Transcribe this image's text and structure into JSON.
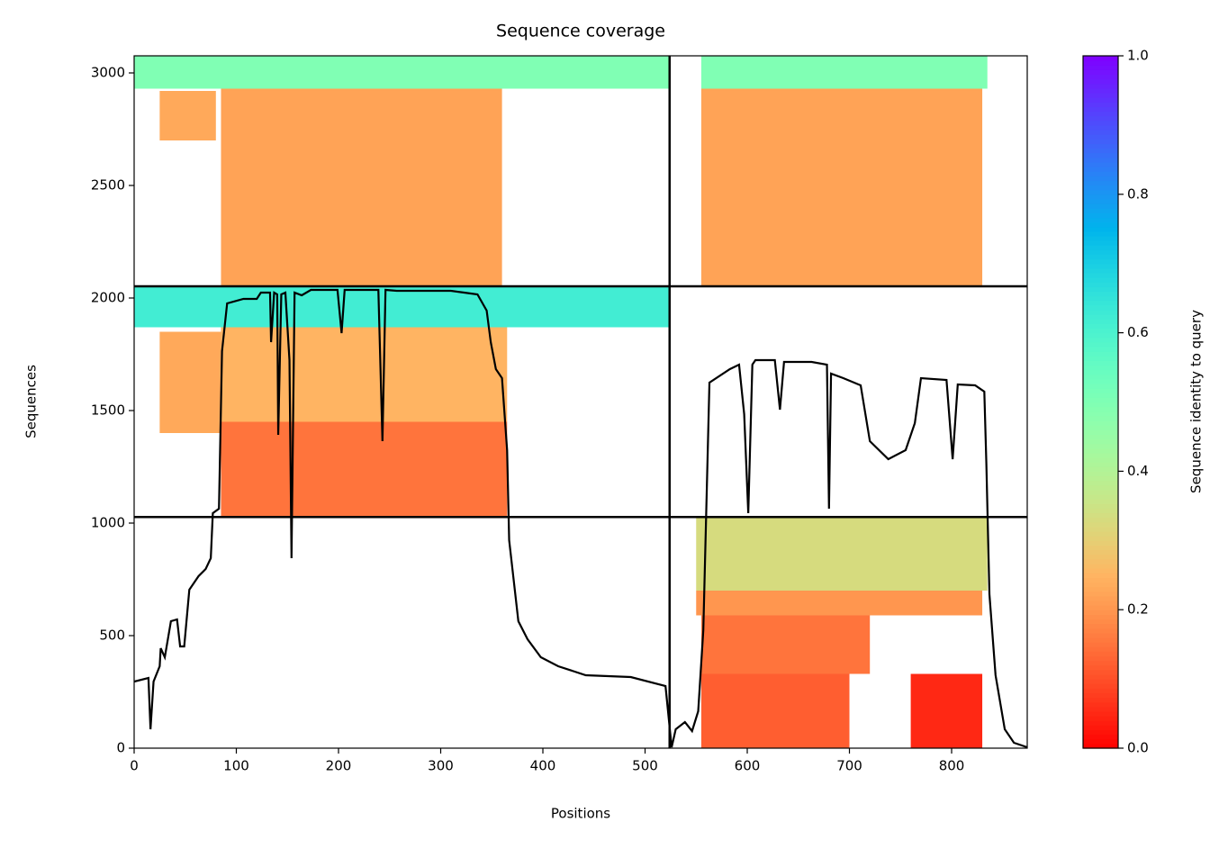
{
  "chart_data": {
    "type": "coverage",
    "title": "Sequence coverage",
    "xlabel": "Positions",
    "ylabel": "Sequences",
    "colorbar_label": "Sequence identity to query",
    "cmap": "rainbow_r",
    "xlim": [
      0,
      874
    ],
    "ylim": [
      0,
      3076
    ],
    "xticks": [
      0,
      100,
      200,
      300,
      400,
      500,
      600,
      700,
      800
    ],
    "yticks": [
      0,
      500,
      1000,
      1500,
      2000,
      2500,
      3000
    ],
    "clim": [
      0,
      1
    ],
    "cticks": [
      {
        "value": 0,
        "label": "0.0"
      },
      {
        "value": 0.2,
        "label": "0.2"
      },
      {
        "value": 0.4,
        "label": "0.4"
      },
      {
        "value": 0.6,
        "label": "0.6"
      },
      {
        "value": 0.8,
        "label": "0.8"
      },
      {
        "value": 1,
        "label": "1.0"
      }
    ],
    "separators_x": [
      524
    ],
    "separators_y": [
      1027,
      2052
    ],
    "blocks": [
      {
        "x": [
          0,
          524
        ],
        "y": [
          2930,
          3076
        ],
        "identity": 0.5
      },
      {
        "x": [
          85,
          360
        ],
        "y": [
          2052,
          2930
        ],
        "identity": 0.22
      },
      {
        "x": [
          25,
          80
        ],
        "y": [
          2700,
          2920
        ],
        "identity": 0.23
      },
      {
        "x": [
          555,
          835
        ],
        "y": [
          2930,
          3076
        ],
        "identity": 0.5
      },
      {
        "x": [
          555,
          830
        ],
        "y": [
          2052,
          2930
        ],
        "identity": 0.22
      },
      {
        "x": [
          0,
          524
        ],
        "y": [
          1870,
          2052
        ],
        "identity": 0.62
      },
      {
        "x": [
          85,
          365
        ],
        "y": [
          1450,
          1870
        ],
        "identity": 0.25
      },
      {
        "x": [
          85,
          365
        ],
        "y": [
          1027,
          1450
        ],
        "identity": 0.15
      },
      {
        "x": [
          25,
          85
        ],
        "y": [
          1400,
          1850
        ],
        "identity": 0.23
      },
      {
        "x": [
          550,
          835
        ],
        "y": [
          700,
          1027
        ],
        "identity": 0.33
      },
      {
        "x": [
          550,
          830
        ],
        "y": [
          590,
          700
        ],
        "identity": 0.2
      },
      {
        "x": [
          555,
          720
        ],
        "y": [
          330,
          590
        ],
        "identity": 0.15
      },
      {
        "x": [
          555,
          700
        ],
        "y": [
          0,
          330
        ],
        "identity": 0.12
      },
      {
        "x": [
          760,
          830
        ],
        "y": [
          0,
          330
        ],
        "identity": 0.05
      }
    ],
    "coverage": {
      "color": "#000000",
      "x": [
        0,
        14,
        16,
        19,
        25,
        26,
        30,
        36,
        42,
        45,
        49,
        54,
        63,
        70,
        75,
        77,
        83,
        86,
        91,
        107,
        120,
        124,
        133,
        134,
        137,
        140,
        141,
        144,
        148,
        152,
        154,
        157,
        164,
        173,
        199,
        203,
        206,
        239,
        243,
        246,
        257,
        310,
        323,
        336,
        345,
        349,
        354,
        360,
        365,
        367,
        371,
        376,
        385,
        398,
        415,
        442,
        486,
        520,
        526,
        530,
        539,
        546,
        552,
        557,
        563,
        583,
        592,
        597,
        601,
        605,
        608,
        627,
        632,
        636,
        663,
        678,
        680,
        682,
        694,
        711,
        720,
        738,
        755,
        764,
        770,
        795,
        801,
        806,
        823,
        832,
        834,
        837,
        843,
        852,
        861,
        874
      ],
      "values": [
        296,
        312,
        84,
        296,
        364,
        444,
        404,
        564,
        572,
        452,
        452,
        704,
        764,
        796,
        844,
        1044,
        1064,
        1764,
        1976,
        1996,
        1996,
        2024,
        2024,
        1804,
        2024,
        2016,
        1392,
        2016,
        2024,
        1724,
        844,
        2024,
        2012,
        2036,
        2036,
        1844,
        2036,
        2036,
        1364,
        2036,
        2032,
        2032,
        2024,
        2016,
        1944,
        1804,
        1684,
        1644,
        1324,
        924,
        764,
        564,
        484,
        404,
        364,
        324,
        316,
        276,
        4,
        84,
        116,
        76,
        164,
        524,
        1624,
        1684,
        1704,
        1484,
        1044,
        1704,
        1724,
        1724,
        1504,
        1716,
        1716,
        1704,
        1064,
        1664,
        1644,
        1612,
        1364,
        1284,
        1324,
        1444,
        1644,
        1636,
        1284,
        1616,
        1612,
        1584,
        1264,
        684,
        324,
        84,
        24,
        4
      ]
    }
  }
}
